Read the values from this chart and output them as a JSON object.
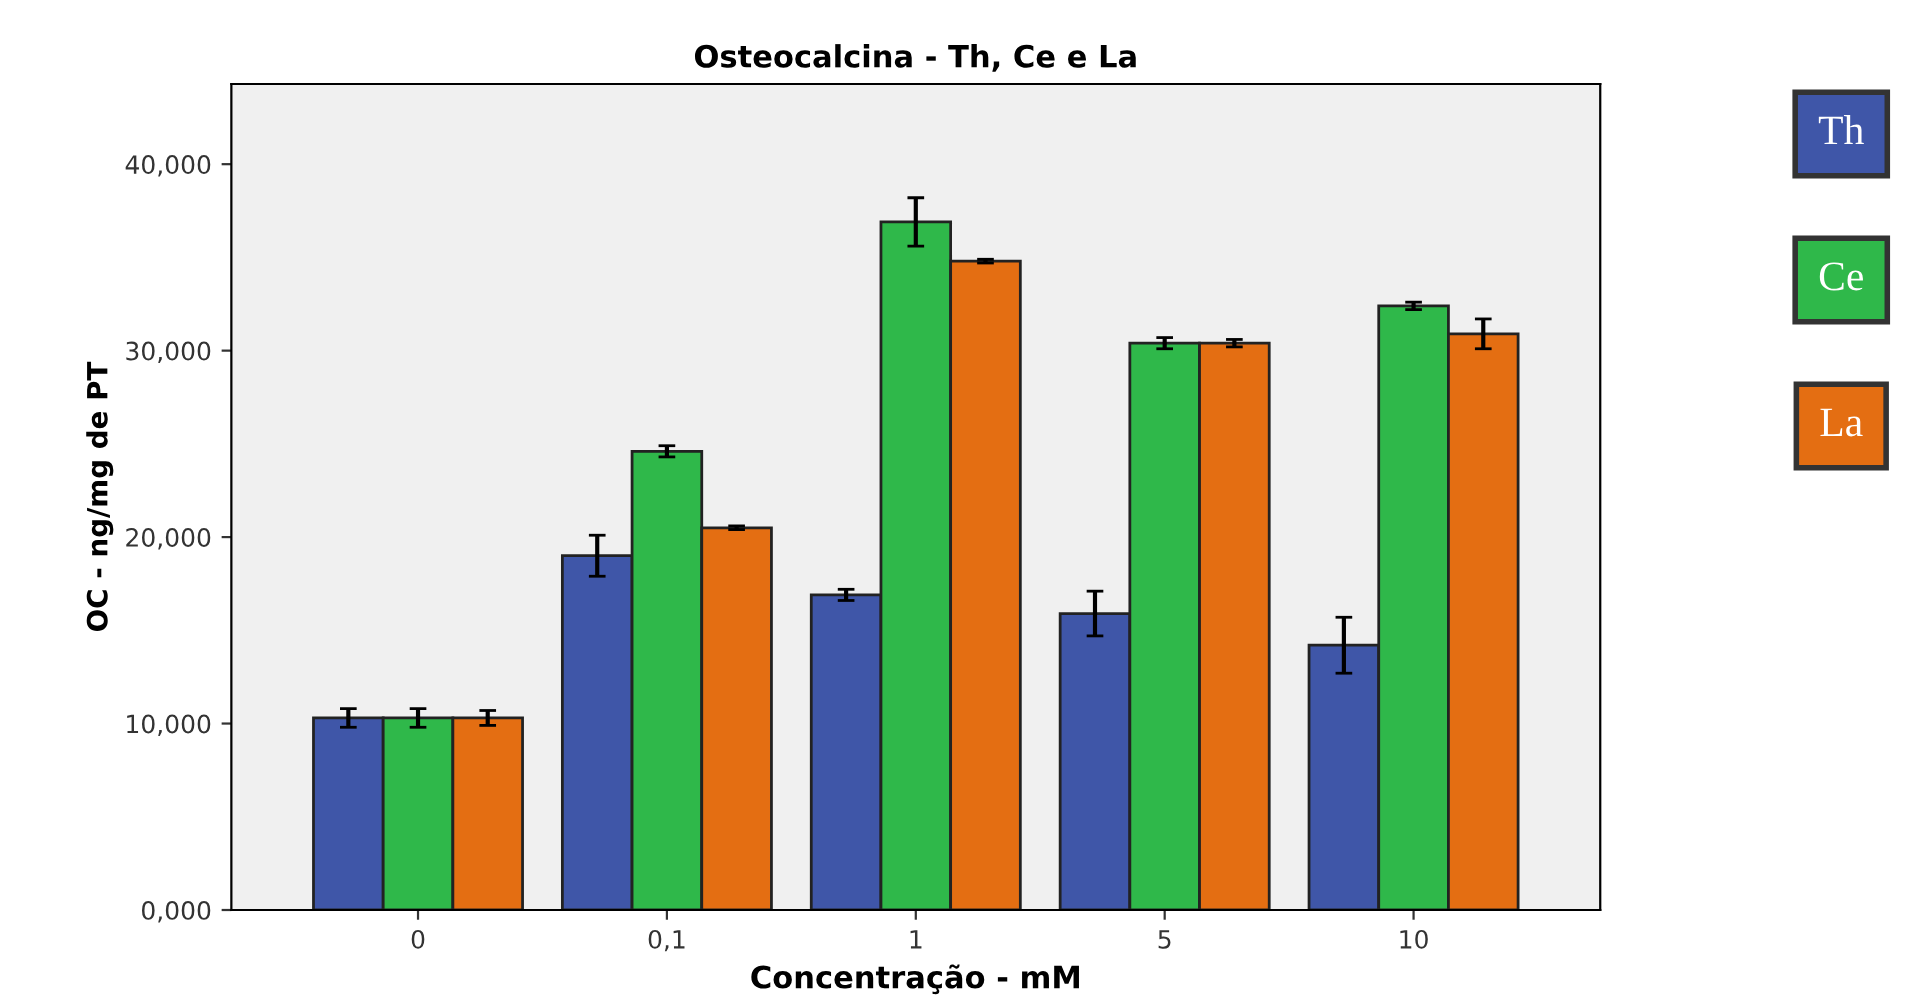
{
  "chart_data": {
    "type": "bar",
    "title": "Osteocalcina - Th, Ce e La",
    "xlabel": "Concentração - mM",
    "ylabel": "OC - ng/mg de PT",
    "categories": [
      "0",
      "0,1",
      "1",
      "5",
      "10"
    ],
    "series": [
      {
        "name": "Th",
        "color": "#3f56a8",
        "values": [
          10.3,
          19.0,
          16.9,
          15.9,
          14.2
        ],
        "errors": [
          0.5,
          1.1,
          0.3,
          1.2,
          1.5
        ]
      },
      {
        "name": "Ce",
        "color": "#2fb84a",
        "values": [
          10.3,
          24.6,
          36.9,
          30.4,
          32.4
        ],
        "errors": [
          0.5,
          0.3,
          1.3,
          0.3,
          0.2
        ]
      },
      {
        "name": "La",
        "color": "#e46e12",
        "values": [
          10.3,
          20.5,
          34.8,
          30.4,
          30.9
        ],
        "errors": [
          0.4,
          0.1,
          0.1,
          0.2,
          0.8
        ]
      }
    ],
    "ylim": [
      0,
      44.3
    ],
    "yticks": [
      {
        "value": 0,
        "label": "0,000"
      },
      {
        "value": 10,
        "label": "10,000"
      },
      {
        "value": 20,
        "label": "20,000"
      },
      {
        "value": 30,
        "label": "30,000"
      },
      {
        "value": 40,
        "label": "40,000"
      }
    ],
    "grid": false,
    "legend": "right"
  }
}
